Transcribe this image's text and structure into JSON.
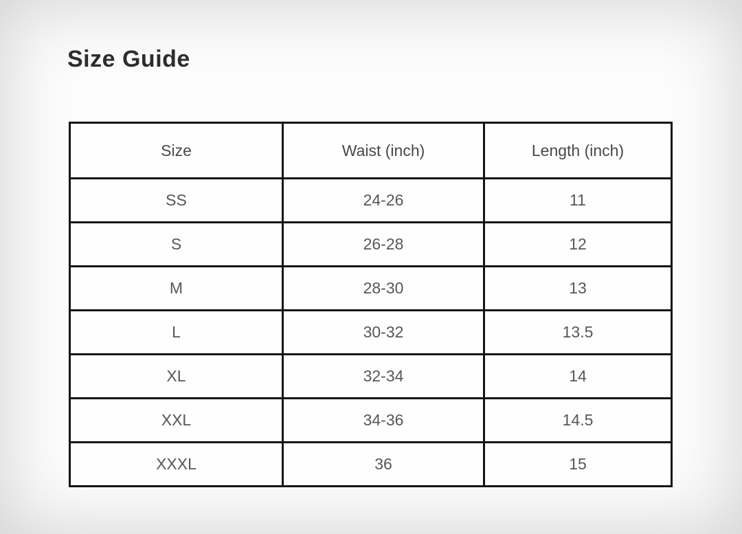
{
  "page": {
    "title": "Size Guide"
  },
  "table": {
    "columns": [
      "Size",
      "Waist (inch)",
      "Length (inch)"
    ],
    "rows": [
      [
        "SS",
        "24-26",
        "11"
      ],
      [
        "S",
        "26-28",
        "12"
      ],
      [
        "M",
        "28-30",
        "13"
      ],
      [
        "L",
        "30-32",
        "13.5"
      ],
      [
        "XL",
        "32-34",
        "14"
      ],
      [
        "XXL",
        "34-36",
        "14.5"
      ],
      [
        "XXXL",
        "36",
        "15"
      ]
    ]
  },
  "colors": {
    "border": "#151515",
    "title_text": "#2d2d2d",
    "header_text": "#484848",
    "cell_text": "#575757",
    "background": "#fdfdfd"
  }
}
